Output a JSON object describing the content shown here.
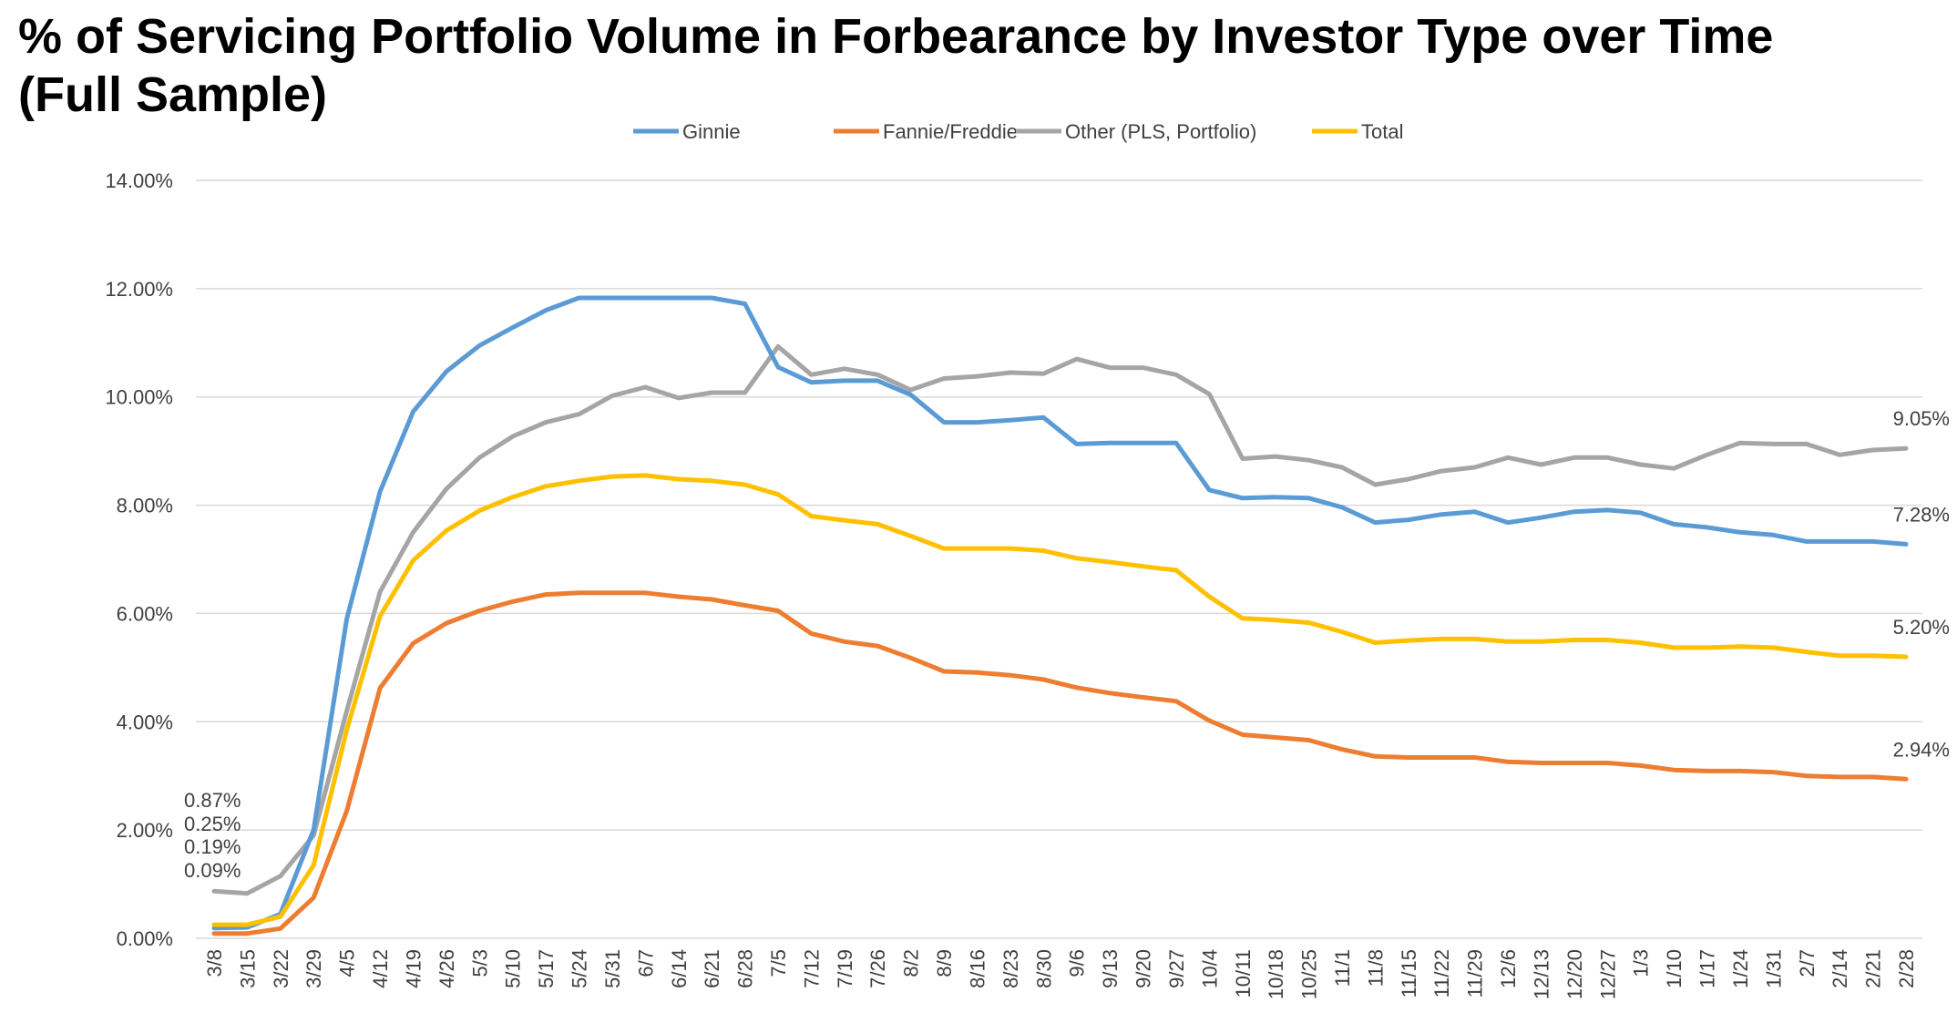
{
  "chart_data": {
    "type": "line",
    "title_lines": [
      "% of Servicing Portfolio Volume in Forbearance by Investor Type over Time",
      "(Full Sample)"
    ],
    "xlabel": "",
    "ylabel": "",
    "ylim": [
      0,
      14
    ],
    "yticks": [
      "0.00%",
      "2.00%",
      "4.00%",
      "6.00%",
      "8.00%",
      "10.00%",
      "12.00%",
      "14.00%"
    ],
    "grid": "horizontal",
    "legend_position": "top-center",
    "categories": [
      "3/8",
      "3/15",
      "3/22",
      "3/29",
      "4/5",
      "4/12",
      "4/19",
      "4/26",
      "5/3",
      "5/10",
      "5/17",
      "5/24",
      "5/31",
      "6/7",
      "6/14",
      "6/21",
      "6/28",
      "7/5",
      "7/12",
      "7/19",
      "7/26",
      "8/2",
      "8/9",
      "8/16",
      "8/23",
      "8/30",
      "9/6",
      "9/13",
      "9/20",
      "9/27",
      "10/4",
      "10/11",
      "10/18",
      "10/25",
      "11/1",
      "11/8",
      "11/15",
      "11/22",
      "11/29",
      "12/6",
      "12/13",
      "12/20",
      "12/27",
      "1/3",
      "1/10",
      "1/17",
      "1/24",
      "1/31",
      "2/7",
      "2/14",
      "2/21",
      "2/28"
    ],
    "series": [
      {
        "name": "Ginnie",
        "color": "#5B9BD5",
        "values": [
          0.19,
          0.2,
          0.45,
          2.0,
          5.9,
          8.25,
          9.73,
          10.47,
          10.95,
          11.28,
          11.6,
          11.83,
          11.83,
          11.83,
          11.83,
          11.83,
          11.72,
          10.55,
          10.27,
          10.3,
          10.3,
          10.04,
          9.53,
          9.53,
          9.57,
          9.62,
          9.13,
          9.15,
          9.15,
          9.15,
          8.28,
          8.13,
          8.15,
          8.13,
          7.96,
          7.68,
          7.73,
          7.83,
          7.88,
          7.68,
          7.77,
          7.88,
          7.91,
          7.86,
          7.65,
          7.59,
          7.5,
          7.45,
          7.33,
          7.33,
          7.33,
          7.28
        ]
      },
      {
        "name": "Fannie/Freddie",
        "color": "#ED7D31",
        "values": [
          0.09,
          0.09,
          0.18,
          0.75,
          2.35,
          4.62,
          5.45,
          5.82,
          6.05,
          6.22,
          6.35,
          6.38,
          6.38,
          6.38,
          6.31,
          6.26,
          6.15,
          6.05,
          5.63,
          5.48,
          5.4,
          5.18,
          4.93,
          4.91,
          4.86,
          4.78,
          4.63,
          4.53,
          4.45,
          4.38,
          4.02,
          3.76,
          3.71,
          3.66,
          3.49,
          3.36,
          3.34,
          3.34,
          3.34,
          3.26,
          3.24,
          3.24,
          3.24,
          3.19,
          3.11,
          3.09,
          3.09,
          3.07,
          3.0,
          2.98,
          2.98,
          2.94
        ]
      },
      {
        "name": "Other (PLS, Portfolio)",
        "color": "#A5A5A5",
        "values": [
          0.87,
          0.83,
          1.15,
          1.9,
          4.2,
          6.4,
          7.5,
          8.3,
          8.88,
          9.27,
          9.53,
          9.68,
          10.02,
          10.18,
          9.98,
          10.08,
          10.08,
          10.93,
          10.41,
          10.52,
          10.41,
          10.13,
          10.34,
          10.38,
          10.45,
          10.43,
          10.7,
          10.54,
          10.54,
          10.41,
          10.05,
          8.86,
          8.9,
          8.83,
          8.7,
          8.38,
          8.48,
          8.63,
          8.7,
          8.88,
          8.75,
          8.88,
          8.88,
          8.75,
          8.68,
          8.93,
          9.15,
          9.13,
          9.13,
          8.93,
          9.02,
          9.05
        ]
      },
      {
        "name": "Total",
        "color": "#FFC000",
        "values": [
          0.25,
          0.25,
          0.4,
          1.35,
          3.85,
          5.95,
          6.98,
          7.53,
          7.9,
          8.15,
          8.35,
          8.45,
          8.53,
          8.55,
          8.48,
          8.45,
          8.38,
          8.2,
          7.8,
          7.72,
          7.65,
          7.43,
          7.2,
          7.2,
          7.2,
          7.16,
          7.02,
          6.95,
          6.87,
          6.8,
          6.31,
          5.91,
          5.88,
          5.83,
          5.66,
          5.46,
          5.5,
          5.53,
          5.53,
          5.48,
          5.48,
          5.51,
          5.51,
          5.46,
          5.37,
          5.37,
          5.39,
          5.37,
          5.29,
          5.22,
          5.22,
          5.2
        ]
      }
    ],
    "start_labels": [
      "0.87%",
      "0.25%",
      "0.19%",
      "0.09%"
    ],
    "end_labels": [
      {
        "series": "Other (PLS, Portfolio)",
        "text": "9.05%"
      },
      {
        "series": "Ginnie",
        "text": "7.28%"
      },
      {
        "series": "Total",
        "text": "5.20%"
      },
      {
        "series": "Fannie/Freddie",
        "text": "2.94%"
      }
    ]
  }
}
